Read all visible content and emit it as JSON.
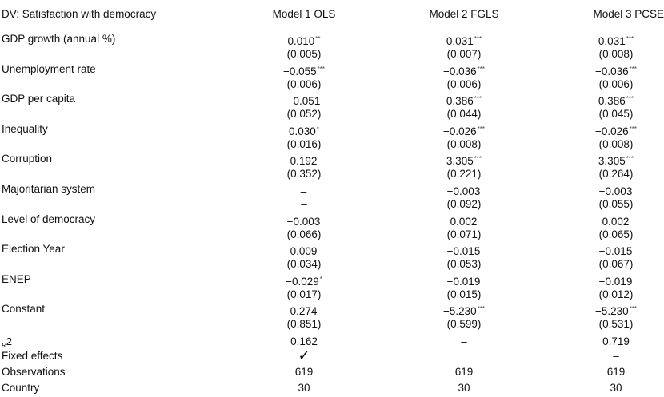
{
  "header": {
    "label": "DV: Satisfaction with democracy",
    "model1": "Model 1 OLS",
    "model2": "Model 2 FGLS",
    "model3": "Model 3 PCSE"
  },
  "rows": [
    {
      "label": "GDP growth (annual %)",
      "m1": "0.010",
      "m1s": "**",
      "m2": "0.031",
      "m2s": "***",
      "m3": "0.031",
      "m3s": "***",
      "se1": "(0.005)",
      "se2": "(0.007)",
      "se3": "(0.008)"
    },
    {
      "label": "Unemployment rate",
      "m1": "−0.055",
      "m1s": "***",
      "m2": "−0.036",
      "m2s": "***",
      "m3": "−0.036",
      "m3s": "***",
      "se1": "(0.006)",
      "se2": "(0.006)",
      "se3": "(0.006)"
    },
    {
      "label": "GDP per capita",
      "m1": "−0.051",
      "m1s": "",
      "m2": "0.386",
      "m2s": "***",
      "m3": "0.386",
      "m3s": "***",
      "se1": "(0.052)",
      "se2": "(0.044)",
      "se3": "(0.045)"
    },
    {
      "label": "Inequality",
      "m1": "0.030",
      "m1s": "*",
      "m2": "−0.026",
      "m2s": "***",
      "m3": "−0.026",
      "m3s": "***",
      "se1": "(0.016)",
      "se2": "(0.008)",
      "se3": "(0.008)"
    },
    {
      "label": "Corruption",
      "m1": "0.192",
      "m1s": "",
      "m2": "3.305",
      "m2s": "***",
      "m3": "3.305",
      "m3s": "***",
      "se1": "(0.352)",
      "se2": "(0.221)",
      "se3": "(0.264)"
    },
    {
      "label": "Majoritarian system",
      "m1": "–",
      "m1s": "",
      "m2": "−0.003",
      "m2s": "",
      "m3": "−0.003",
      "m3s": "",
      "se1": "–",
      "se2": "(0.092)",
      "se3": "(0.055)"
    },
    {
      "label": "Level of democracy",
      "m1": "−0.003",
      "m1s": "",
      "m2": "0.002",
      "m2s": "",
      "m3": "0.002",
      "m3s": "",
      "se1": "(0.066)",
      "se2": "(0.071)",
      "se3": "(0.065)"
    },
    {
      "label": "Election Year",
      "m1": "0.009",
      "m1s": "",
      "m2": "−0.015",
      "m2s": "",
      "m3": "−0.015",
      "m3s": "",
      "se1": "(0.034)",
      "se2": "(0.053)",
      "se3": "(0.067)"
    },
    {
      "label": "ENEP",
      "m1": "−0.029",
      "m1s": "*",
      "m2": "−0.019",
      "m2s": "",
      "m3": "−0.019",
      "m3s": "",
      "se1": "(0.017)",
      "se2": "(0.015)",
      "se3": "(0.012)"
    },
    {
      "label": "Constant",
      "m1": "0.274",
      "m1s": "",
      "m2": "−5.230",
      "m2s": "***",
      "m3": "−5.230",
      "m3s": "***",
      "se1": "(0.851)",
      "se2": "(0.599)",
      "se3": "(0.531)"
    }
  ],
  "r2": {
    "label_sub": "R",
    "label_main": "2",
    "m1": "0.162",
    "m2": "–",
    "m3": "0.719"
  },
  "fixed_effects": {
    "label": "Fixed effects",
    "m1": "✓",
    "m2": "",
    "m3": "–"
  },
  "observations": {
    "label": "Observations",
    "m1": "619",
    "m2": "619",
    "m3": "619"
  },
  "country": {
    "label": "Country",
    "m1": "30",
    "m2": "30",
    "m3": "30"
  }
}
